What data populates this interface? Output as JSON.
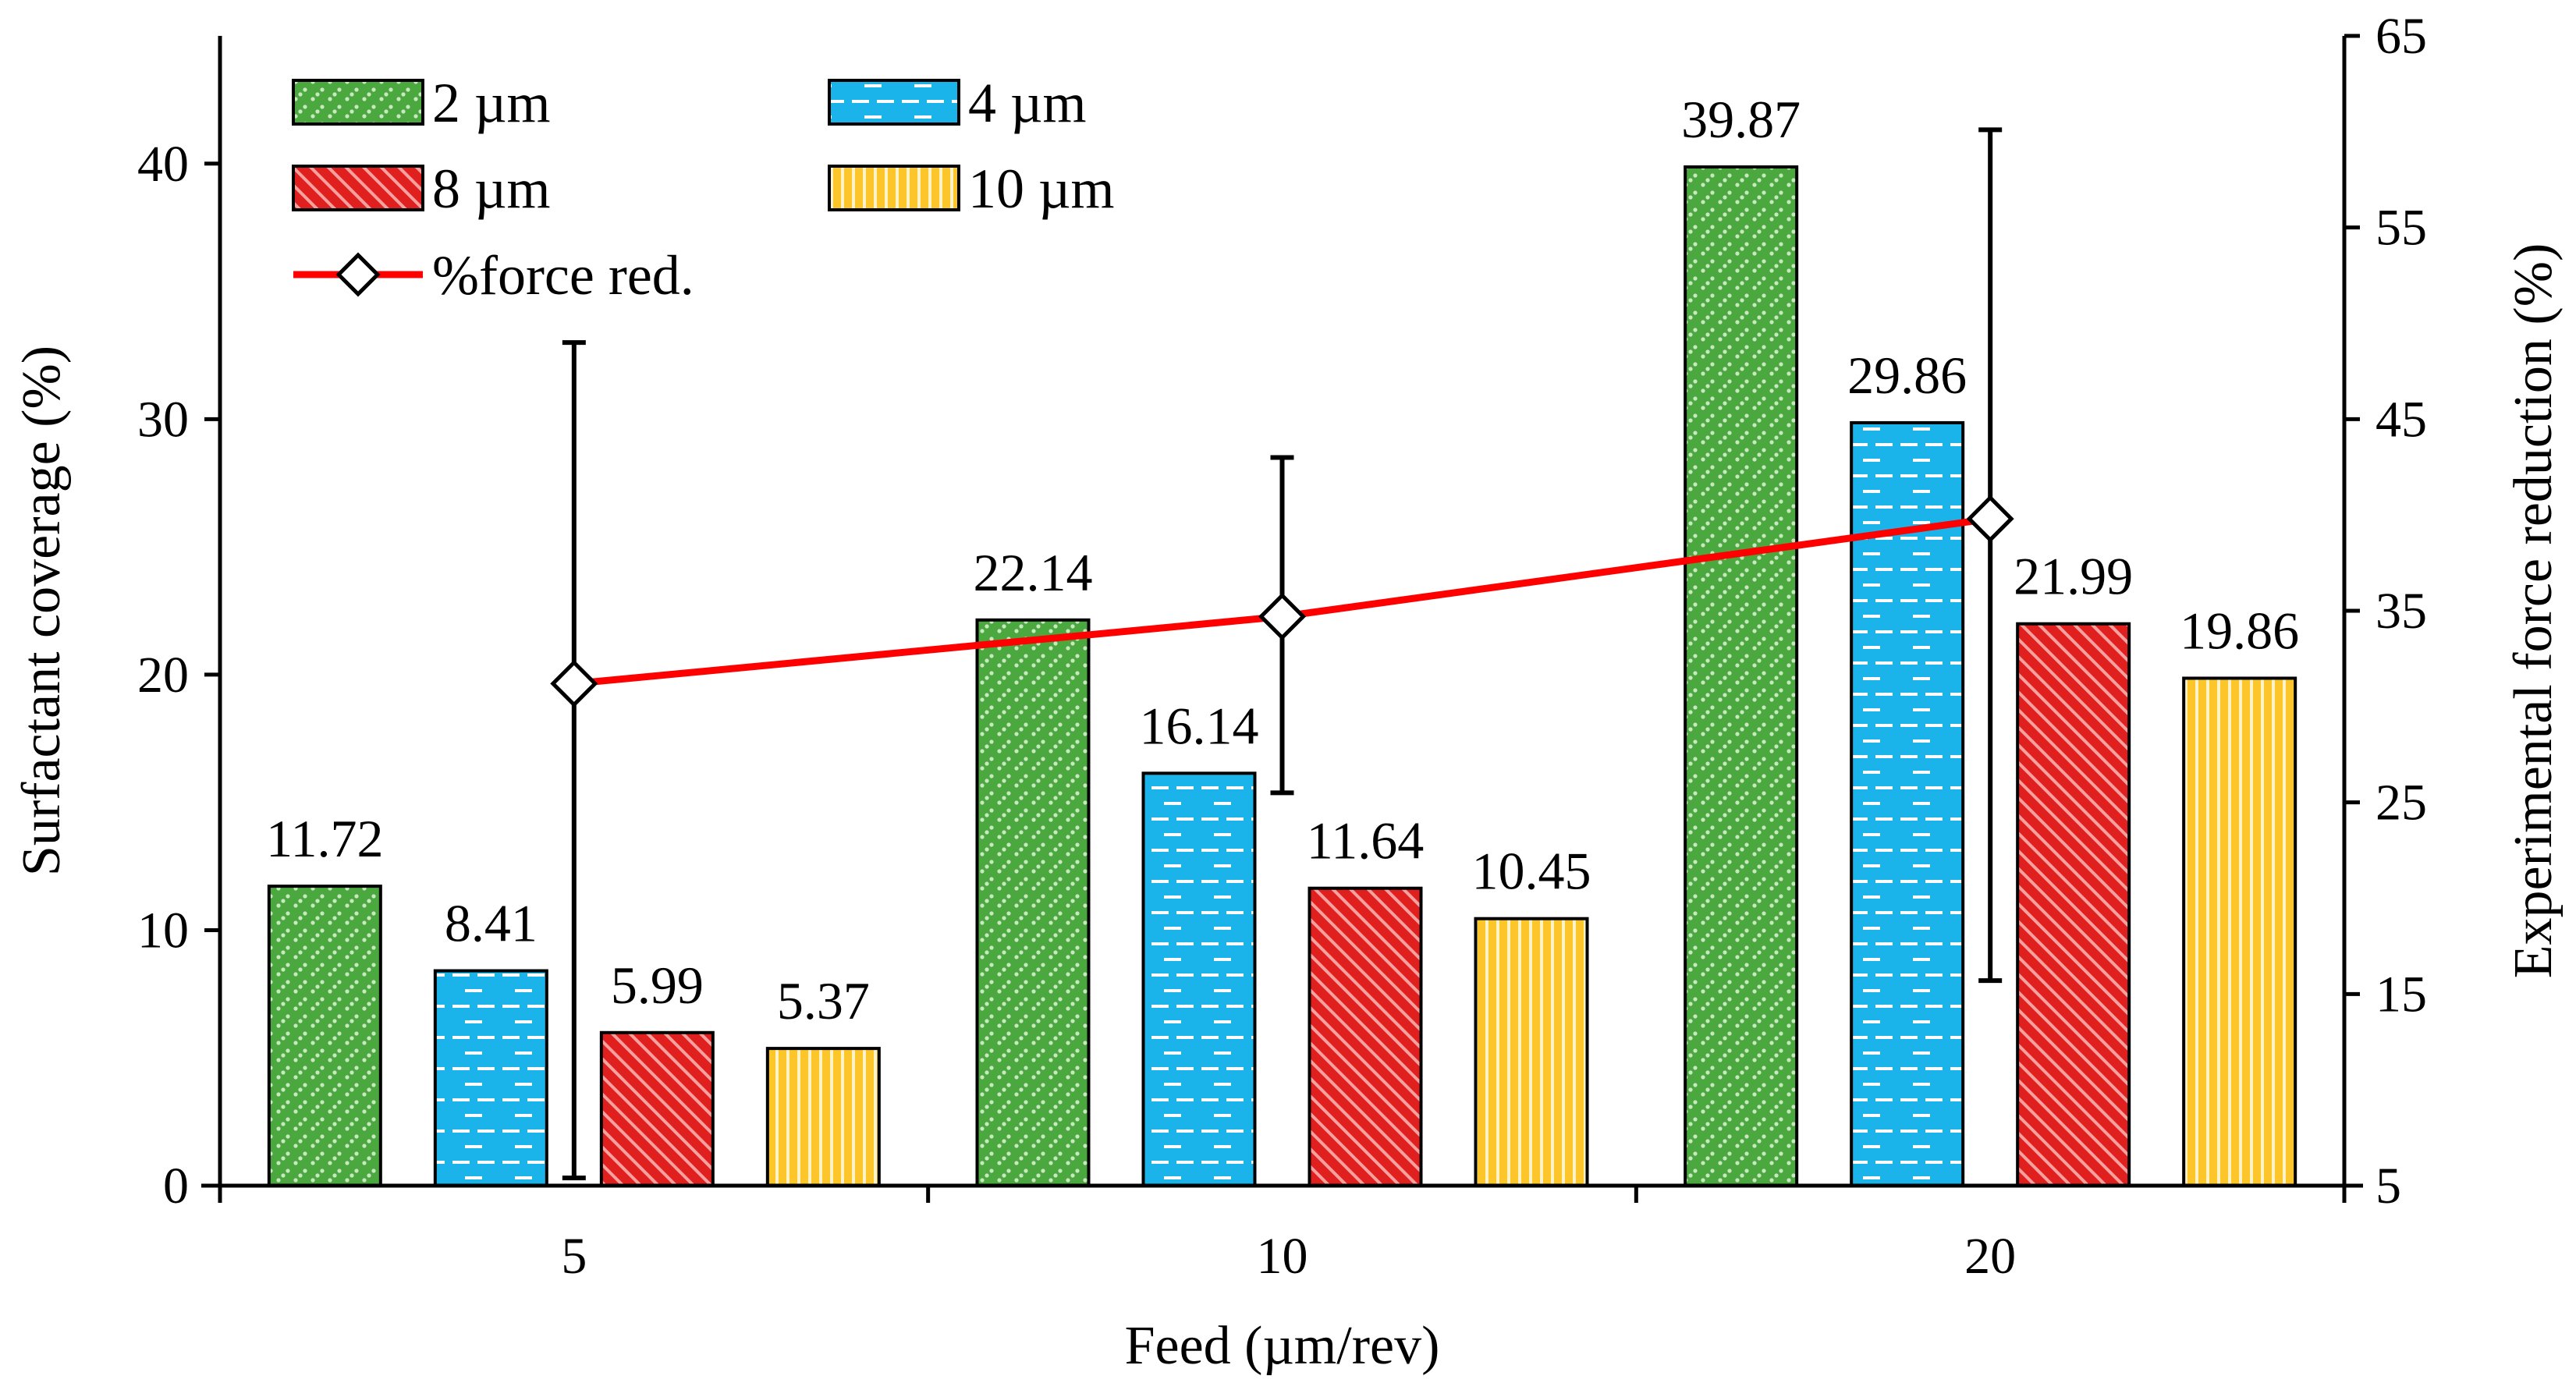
{
  "chart_data": {
    "type": "bar",
    "xlabel": "Feed (µm/rev)",
    "ylabel": "Surfactant coverage (%)",
    "y2label": "Experimental force reduction (%)",
    "categories": [
      "5",
      "10",
      "20"
    ],
    "ylim": [
      0,
      45
    ],
    "yticks": [
      "0",
      "10",
      "20",
      "30",
      "40"
    ],
    "y2lim": [
      5,
      65
    ],
    "y2ticks": [
      "5",
      "15",
      "25",
      "35",
      "45",
      "55",
      "65"
    ],
    "series": [
      {
        "name": "2 µm",
        "values": [
          11.72,
          22.14,
          39.87
        ],
        "labels": [
          "11.72",
          "22.14",
          "39.87"
        ],
        "color": "#4aa83f",
        "pattern": "dots"
      },
      {
        "name": "4 µm",
        "values": [
          8.41,
          16.14,
          29.86
        ],
        "labels": [
          "8.41",
          "16.14",
          "29.86"
        ],
        "color": "#1ab4ea",
        "pattern": "dashes"
      },
      {
        "name": "8 µm",
        "values": [
          5.99,
          11.64,
          21.99
        ],
        "labels": [
          "5.99",
          "11.64",
          "21.99"
        ],
        "color": "#e0201e",
        "pattern": "diagonal"
      },
      {
        "name": "10 µm",
        "values": [
          5.37,
          10.45,
          19.86
        ],
        "labels": [
          "5.37",
          "10.45",
          "19.86"
        ],
        "color": "#fcc62a",
        "pattern": "vertical"
      }
    ],
    "line_series": {
      "name": "%force red.",
      "axis": "secondary",
      "color": "#ff0000",
      "values": [
        31.2,
        34.7,
        39.8
      ],
      "error_low": [
        5.4,
        25.5,
        15.7
      ],
      "error_high": [
        49.0,
        43.0,
        60.1
      ]
    },
    "legend_position": "top-left",
    "grid": false
  }
}
